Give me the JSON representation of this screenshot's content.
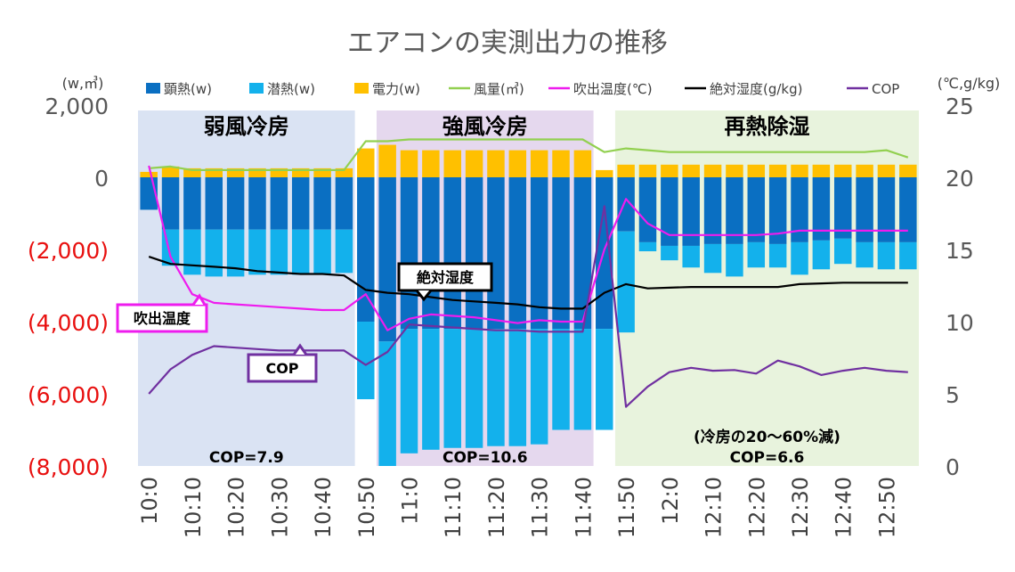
{
  "chart_data": {
    "type": "bar",
    "title": "エアコンの実測出力の推移",
    "left_axis_unit": "(w,㎥)",
    "right_axis_unit": "(℃,g/kg)",
    "left_axis": {
      "ylim": [
        -8000,
        2000
      ],
      "ticks": [
        2000,
        0,
        -2000,
        -4000,
        -6000,
        -8000
      ],
      "tick_labels": [
        "2,000",
        "0",
        "(2,000)",
        "(4,000)",
        "(6,000)",
        "(8,000)"
      ],
      "negative_color": "#e8100f"
    },
    "right_axis": {
      "ylim": [
        0,
        25
      ],
      "ticks": [
        25,
        20,
        15,
        10,
        5,
        0
      ],
      "tick_labels": [
        "25",
        "20",
        "15",
        "10",
        "5",
        "0"
      ]
    },
    "legend": {
      "placement": "top",
      "entries": [
        {
          "label": "顕熱(w)",
          "kind": "bar",
          "color": "#0a6fc2"
        },
        {
          "label": "潜熱(w)",
          "kind": "bar",
          "color": "#13b1ec"
        },
        {
          "label": "電力(w)",
          "kind": "bar",
          "color": "#ffc000"
        },
        {
          "label": "風量(㎥)",
          "kind": "line",
          "color": "#92d050"
        },
        {
          "label": "吹出温度(℃)",
          "kind": "line",
          "color": "#ee1cee"
        },
        {
          "label": "絶対湿度(g/kg)",
          "kind": "line",
          "color": "#000000"
        },
        {
          "label": "COP",
          "kind": "line",
          "color": "#7030a0"
        }
      ]
    },
    "categories": [
      "10:0",
      "10:5",
      "10:10",
      "10:15",
      "10:20",
      "10:25",
      "10:30",
      "10:35",
      "10:40",
      "10:45",
      "10:50",
      "10:55",
      "11:0",
      "11:5",
      "11:10",
      "11:15",
      "11:20",
      "11:25",
      "11:30",
      "11:35",
      "11:40",
      "11:45",
      "11:50",
      "11:55",
      "12:0",
      "12:5",
      "12:10",
      "12:15",
      "12:20",
      "12:25",
      "12:30",
      "12:35",
      "12:40",
      "12:45",
      "12:50",
      "12:55"
    ],
    "x_tick_labels": [
      "10:0",
      "10:10",
      "10:20",
      "10:30",
      "10:40",
      "10:50",
      "11:0",
      "11:10",
      "11:20",
      "11:30",
      "11:40",
      "11:50",
      "12:0",
      "12:10",
      "12:20",
      "12:30",
      "12:40",
      "12:50"
    ],
    "series": [
      {
        "name": "顕熱(w)",
        "axis": "left",
        "type": "bar",
        "color": "#0a6fc2",
        "values": [
          -900,
          -1450,
          -1450,
          -1450,
          -1450,
          -1450,
          -1450,
          -1450,
          -1450,
          -1450,
          -4000,
          -4550,
          -4200,
          -4200,
          -4200,
          -4200,
          -4200,
          -4200,
          -4200,
          -4200,
          -4200,
          -4200,
          -1500,
          -1800,
          -1900,
          -1900,
          -1850,
          -1850,
          -1800,
          -1850,
          -1800,
          -1750,
          -1700,
          -1800,
          -1800,
          -1800
        ],
        "stack": "cool"
      },
      {
        "name": "潜熱(w)",
        "axis": "left",
        "type": "bar",
        "color": "#13b1ec",
        "values": [
          0,
          -1000,
          -1250,
          -1300,
          -1300,
          -1250,
          -1250,
          -1250,
          -1250,
          -1200,
          -2150,
          -3450,
          -3450,
          -3350,
          -3300,
          -3300,
          -3250,
          -3250,
          -3200,
          -2800,
          -2800,
          -2800,
          -2800,
          -250,
          -400,
          -600,
          -800,
          -900,
          -700,
          -650,
          -900,
          -800,
          -700,
          -700,
          -750,
          -750
        ],
        "stack": "cool"
      },
      {
        "name": "電力(w)",
        "axis": "left",
        "type": "bar",
        "color": "#ffc000",
        "values": [
          150,
          300,
          250,
          250,
          250,
          250,
          250,
          250,
          250,
          250,
          800,
          900,
          750,
          750,
          750,
          750,
          750,
          750,
          750,
          750,
          750,
          200,
          350,
          350,
          350,
          350,
          350,
          350,
          350,
          350,
          350,
          350,
          350,
          350,
          350,
          350
        ],
        "stack": "power"
      },
      {
        "name": "風量(㎥)",
        "axis": "left",
        "type": "line",
        "color": "#92d050",
        "values": [
          250,
          300,
          200,
          200,
          200,
          200,
          200,
          200,
          200,
          200,
          1000,
          1000,
          1050,
          1050,
          1050,
          1050,
          1050,
          1050,
          1050,
          1050,
          1050,
          700,
          800,
          750,
          700,
          700,
          700,
          700,
          700,
          700,
          700,
          700,
          700,
          700,
          750,
          550
        ]
      },
      {
        "name": "吹出温度(℃)",
        "axis": "right",
        "type": "line",
        "color": "#ee1cee",
        "values": [
          20.8,
          14.5,
          11.9,
          11.3,
          11.2,
          11.1,
          11.0,
          10.9,
          10.8,
          10.8,
          11.9,
          9.4,
          10.2,
          10.5,
          10.4,
          10.3,
          10.1,
          9.9,
          10.1,
          10.0,
          10.0,
          15.0,
          18.5,
          16.8,
          16.0,
          16.0,
          16.0,
          16.0,
          16.0,
          16.1,
          16.3,
          16.3,
          16.3,
          16.3,
          16.3,
          16.3
        ]
      },
      {
        "name": "絶対湿度(g/kg)",
        "axis": "right",
        "type": "line",
        "color": "#000000",
        "values": [
          14.5,
          14.0,
          13.9,
          13.8,
          13.7,
          13.5,
          13.4,
          13.3,
          13.3,
          13.2,
          12.2,
          12.0,
          11.9,
          11.7,
          11.5,
          11.4,
          11.3,
          11.2,
          11.0,
          10.9,
          10.9,
          12.0,
          12.6,
          12.3,
          12.35,
          12.4,
          12.4,
          12.4,
          12.4,
          12.4,
          12.6,
          12.65,
          12.7,
          12.7,
          12.7,
          12.7
        ]
      },
      {
        "name": "COP",
        "axis": "right",
        "type": "line",
        "color": "#7030a0",
        "values": [
          5.0,
          6.7,
          7.7,
          8.3,
          8.2,
          8.1,
          8.0,
          8.0,
          8.0,
          8.0,
          7.0,
          7.9,
          9.8,
          9.7,
          9.6,
          9.5,
          9.4,
          9.4,
          9.3,
          9.3,
          9.3,
          18.0,
          4.1,
          5.5,
          6.5,
          6.8,
          6.6,
          6.65,
          6.4,
          7.3,
          6.9,
          6.3,
          6.6,
          6.8,
          6.6,
          6.5
        ]
      }
    ],
    "regions": [
      {
        "label": "弱風冷房",
        "from": 0,
        "to": 9,
        "color": "#dae3f3",
        "cop": "COP=7.9",
        "note": ""
      },
      {
        "label": "強風冷房",
        "from": 11,
        "to": 20,
        "color": "#e5d8ee",
        "cop": "COP=10.6",
        "note": ""
      },
      {
        "label": "再熱除湿",
        "from": 22,
        "to": 35,
        "color": "#e8f3dd",
        "cop": "COP=6.6",
        "note": "(冷房の20～60%減)"
      }
    ],
    "callouts": [
      {
        "label": "吹出温度",
        "border": "#ee1cee"
      },
      {
        "label": "絶対湿度",
        "border": "#000000"
      },
      {
        "label": "COP",
        "border": "#7030a0"
      }
    ],
    "grid": false
  }
}
